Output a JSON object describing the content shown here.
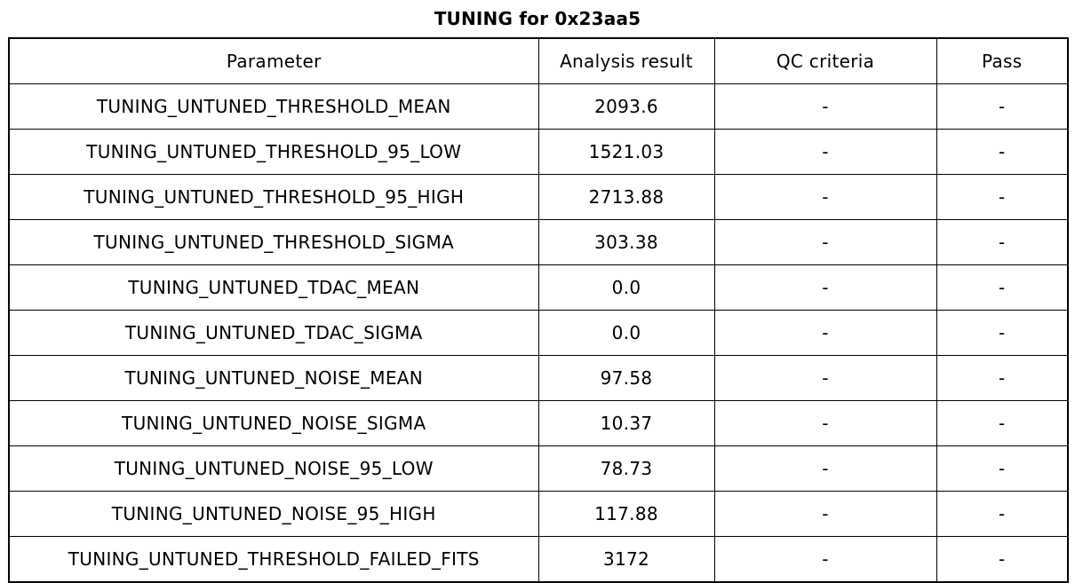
{
  "chart_data": {
    "type": "table",
    "title": "TUNING for 0x23aa5",
    "columns": [
      "Parameter",
      "Analysis result",
      "QC criteria",
      "Pass"
    ],
    "rows": [
      [
        "TUNING_UNTUNED_THRESHOLD_MEAN",
        "2093.6",
        "-",
        "-"
      ],
      [
        "TUNING_UNTUNED_THRESHOLD_95_LOW",
        "1521.03",
        "-",
        "-"
      ],
      [
        "TUNING_UNTUNED_THRESHOLD_95_HIGH",
        "2713.88",
        "-",
        "-"
      ],
      [
        "TUNING_UNTUNED_THRESHOLD_SIGMA",
        "303.38",
        "-",
        "-"
      ],
      [
        "TUNING_UNTUNED_TDAC_MEAN",
        "0.0",
        "-",
        "-"
      ],
      [
        "TUNING_UNTUNED_TDAC_SIGMA",
        "0.0",
        "-",
        "-"
      ],
      [
        "TUNING_UNTUNED_NOISE_MEAN",
        "97.58",
        "-",
        "-"
      ],
      [
        "TUNING_UNTUNED_NOISE_SIGMA",
        "10.37",
        "-",
        "-"
      ],
      [
        "TUNING_UNTUNED_NOISE_95_LOW",
        "78.73",
        "-",
        "-"
      ],
      [
        "TUNING_UNTUNED_NOISE_95_HIGH",
        "117.88",
        "-",
        "-"
      ],
      [
        "TUNING_UNTUNED_THRESHOLD_FAILED_FITS",
        "3172",
        "-",
        "-"
      ]
    ],
    "layout": {
      "border_color": "#000000",
      "text_color": "#000000",
      "background": "#ffffff",
      "header_position": "top",
      "grid": "on"
    }
  }
}
